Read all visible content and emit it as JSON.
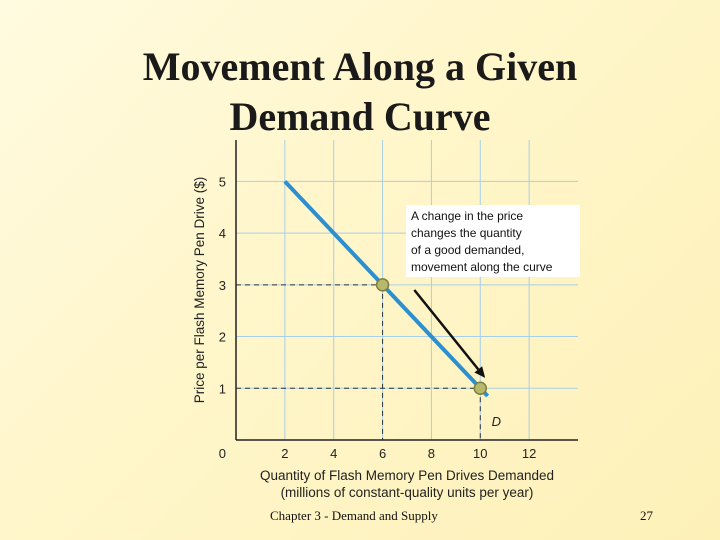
{
  "slide": {
    "title_line1": "Movement Along a Given",
    "title_line2": "Demand Curve",
    "footer_left": "Chapter 3 - Demand and Supply",
    "page_number": "27"
  },
  "colors": {
    "curve": "#2b8fd0",
    "grid": "#a8cfe8",
    "point_fill": "#b8b86c",
    "point_stroke": "#7f7f3a",
    "axis": "#222222",
    "arrow": "#111111"
  },
  "chart_data": {
    "type": "line",
    "xlabel_line1": "Quantity of Flash Memory Pen Drives Demanded",
    "xlabel_line2": "(millions of constant-quality units per year)",
    "ylabel": "Price per Flash Memory Pen Drive ($)",
    "xlim": [
      0,
      14
    ],
    "ylim": [
      0,
      5.8
    ],
    "x_ticks": [
      2,
      4,
      6,
      8,
      10,
      12
    ],
    "y_ticks": [
      1,
      2,
      3,
      4,
      5
    ],
    "origin_label": "0",
    "grid": true,
    "series": [
      {
        "name": "D",
        "x": [
          2,
          10.3
        ],
        "y": [
          5,
          0.85
        ]
      }
    ],
    "points": [
      {
        "x": 6,
        "y": 3
      },
      {
        "x": 10,
        "y": 1
      }
    ],
    "annotation": {
      "lines": [
        "A change in the price",
        "changes the quantity",
        "of a good demanded,",
        "movement along the curve"
      ]
    },
    "arrow": {
      "from": [
        7.3,
        2.9
      ],
      "to": [
        10.2,
        1.2
      ]
    }
  }
}
